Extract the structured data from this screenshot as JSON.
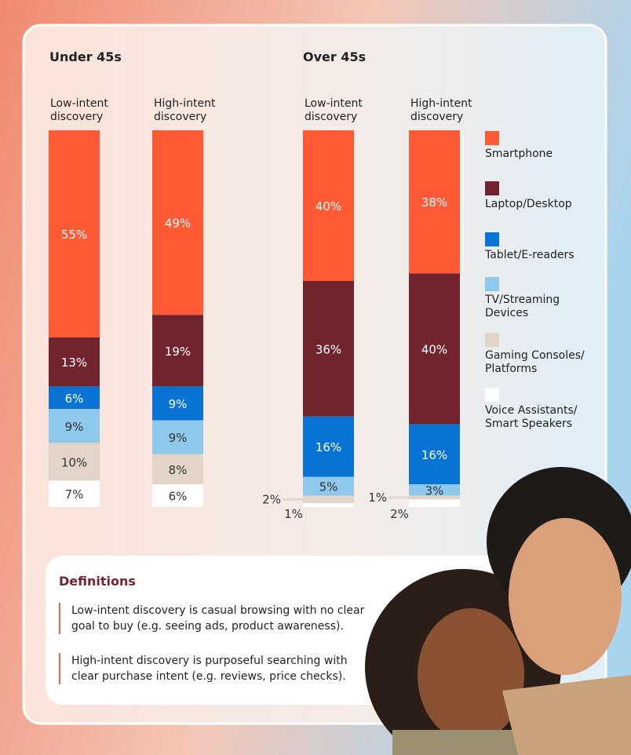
{
  "chart_data": {
    "type": "stacked_bar",
    "groups": [
      "Under 45s",
      "Over 45s"
    ],
    "categories": [
      "Low-intent discovery",
      "High-intent discovery",
      "Low-intent discovery",
      "High-intent discovery"
    ],
    "series": [
      {
        "name": "Smartphone",
        "color": "#ff5a36",
        "values": [
          55,
          49,
          40,
          38
        ],
        "value_labels": [
          "55%",
          "49%",
          "40%",
          "38%"
        ]
      },
      {
        "name": "Laptop/Desktop",
        "color": "#72242e",
        "values": [
          13,
          19,
          36,
          40
        ],
        "value_labels": [
          "13%",
          "19%",
          "36%",
          "40%"
        ]
      },
      {
        "name": "Tablet/E-readers",
        "color": "#0a74d4",
        "values": [
          6,
          9,
          16,
          16
        ],
        "value_labels": [
          "6%",
          "9%",
          "16%",
          "16%"
        ]
      },
      {
        "name": "TV/Streaming Devices",
        "color": "#8ec8ec",
        "values": [
          9,
          9,
          5,
          3
        ],
        "value_labels": [
          "9%",
          "9%",
          "5%",
          "3%"
        ]
      },
      {
        "name": "Gaming Consoles/ Platforms",
        "color": "#e3d4c8",
        "values": [
          10,
          8,
          2,
          1
        ],
        "value_labels": [
          "10%",
          "8%",
          "2%",
          "1%"
        ]
      },
      {
        "name": "Voice Assistants/ Smart Speakers",
        "color": "#ffffff",
        "values": [
          7,
          6,
          1,
          2
        ],
        "value_labels": [
          "7%",
          "6%",
          "1%",
          "2%"
        ]
      }
    ]
  },
  "definitions": {
    "title": "Definitions",
    "items": [
      "Low-intent discovery is casual browsing with no clear goal to buy (e.g. seeing ads, product awareness).",
      "High-intent discovery is purposeful searching with clear purchase intent (e.g. reviews, price checks)."
    ]
  }
}
